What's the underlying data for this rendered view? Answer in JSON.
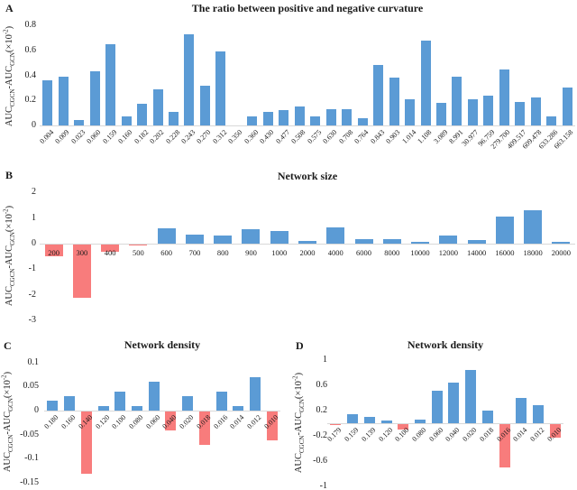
{
  "colors": {
    "bar_positive": "#5b9bd5",
    "bar_negative": "#f87c7c",
    "axis_line": "#d9d9d9",
    "text": "#1a1a1a"
  },
  "axis_label": {
    "auc": "AUC",
    "sub_cgcn": "CGCN",
    "minus_auc": "-AUC",
    "sub_gcn": "GCN",
    "times": "(×10",
    "exp": "-2",
    "close": ")"
  },
  "chart_data": [
    {
      "panel": "A",
      "type": "bar",
      "title": "The ratio between positive and negative curvature",
      "xlabel": "",
      "ylabel": "AUC_CGCN-AUC_GCN(×10^-2)",
      "ylim": [
        0,
        0.8
      ],
      "yticks": [
        "0.8",
        "0.6",
        "0.4",
        "0.2",
        "0"
      ],
      "legend": "none",
      "grid": "off",
      "categories": [
        "0.004",
        "0.009",
        "0.023",
        "0.060",
        "0.159",
        "0.160",
        "0.182",
        "0.202",
        "0.228",
        "0.243",
        "0.270",
        "0.312",
        "0.350",
        "0.360",
        "0.430",
        "0.477",
        "0.508",
        "0.575",
        "0.630",
        "0.708",
        "0.764",
        "0.843",
        "0.903",
        "1.014",
        "1.108",
        "3.089",
        "8.991",
        "30.977",
        "96.759",
        "279.700",
        "409.517",
        "609.478",
        "633.286",
        "663.158"
      ],
      "values": [
        0.36,
        0.39,
        0.04,
        0.43,
        0.65,
        0.07,
        0.17,
        0.29,
        0.11,
        0.73,
        0.32,
        0.59,
        0,
        0.07,
        0.11,
        0.12,
        0.15,
        0.07,
        0.13,
        0.13,
        0.06,
        0.48,
        0.38,
        0.21,
        0.68,
        0.18,
        0.39,
        0.21,
        0.24,
        0.45,
        0.19,
        0.22,
        0.07,
        0.3
      ]
    },
    {
      "panel": "B",
      "type": "bar",
      "title": "Network size",
      "xlabel": "",
      "ylabel": "AUC_CGCN-AUC_GCN(×10^-2)",
      "ylim": [
        -3,
        2
      ],
      "yticks": [
        "2",
        "1",
        "0",
        "-1",
        "-2",
        "-3"
      ],
      "legend": "none",
      "grid": "off",
      "categories": [
        "200",
        "300",
        "400",
        "500",
        "600",
        "700",
        "800",
        "900",
        "1000",
        "2000",
        "4000",
        "6000",
        "8000",
        "10000",
        "12000",
        "14000",
        "16000",
        "18000",
        "20000"
      ],
      "values": [
        -0.45,
        -2.1,
        -0.3,
        -0.05,
        0.6,
        0.35,
        0.32,
        0.55,
        0.48,
        0.1,
        0.64,
        0.18,
        0.18,
        0.07,
        0.32,
        0.14,
        1.05,
        1.3,
        0.07
      ]
    },
    {
      "panel": "C",
      "type": "bar",
      "title": "Network density",
      "xlabel": "",
      "ylabel": "AUC_CGCN-AUC_GCN(×10^-2)",
      "ylim": [
        -0.15,
        0.1
      ],
      "yticks": [
        "0.1",
        "0.05",
        "0",
        "-0.05",
        "-0.1",
        "-0.15"
      ],
      "legend": "none",
      "grid": "off",
      "categories": [
        "0.180",
        "0.160",
        "0.140",
        "0.120",
        "0.100",
        "0.080",
        "0.060",
        "0.040",
        "0.020",
        "0.018",
        "0.016",
        "0.014",
        "0.012",
        "0.010"
      ],
      "values": [
        0.02,
        0.03,
        -0.13,
        0.01,
        0.04,
        0.01,
        0.06,
        -0.04,
        0.03,
        -0.07,
        0.04,
        0.01,
        0.07,
        -0.06
      ]
    },
    {
      "panel": "D",
      "type": "bar",
      "title": "Network density",
      "xlabel": "",
      "ylabel": "AUC_CGCN-AUC_GCN(×10^-2)",
      "ylim": [
        -1,
        1
      ],
      "yticks": [
        "1",
        "0.6",
        "0.2",
        "-0.2",
        "-0.6",
        "-1"
      ],
      "legend": "none",
      "grid": "off",
      "categories": [
        "0.179",
        "0.159",
        "0.139",
        "0.120",
        "0.100",
        "0.080",
        "0.060",
        "0.040",
        "0.020",
        "0.018",
        "0.016",
        "0.014",
        "0.012",
        "0.010"
      ],
      "values": [
        -0.02,
        0.15,
        0.1,
        0.05,
        -0.08,
        0.06,
        0.52,
        0.64,
        0.85,
        0.2,
        -0.68,
        0.4,
        0.28,
        -0.21
      ]
    }
  ]
}
